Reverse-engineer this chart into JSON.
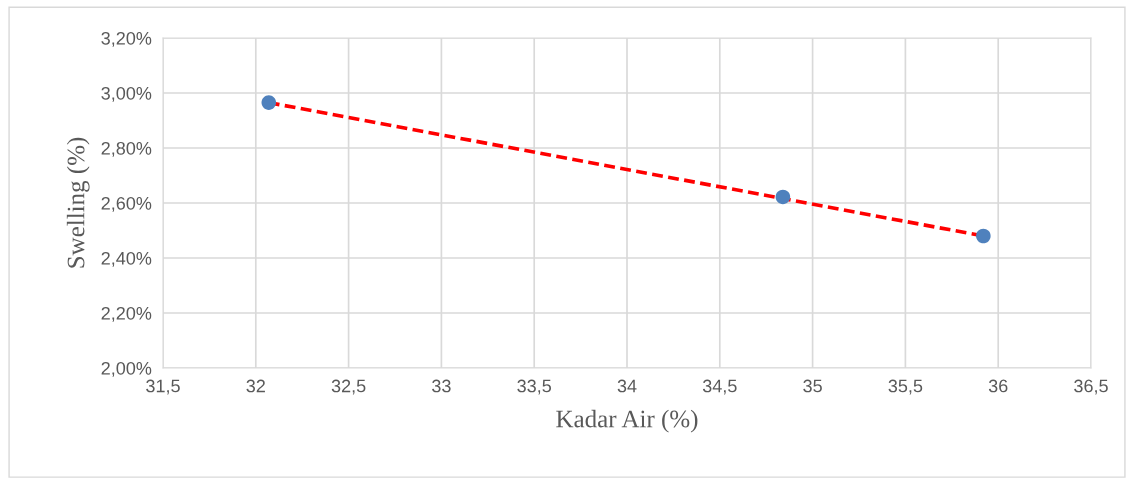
{
  "chart_data": {
    "type": "scatter",
    "xlabel": "Kadar Air (%)",
    "ylabel": "Swelling (%)",
    "series": [
      {
        "color": "#4f81bd",
        "x": [
          32.07,
          34.84,
          35.92
        ],
        "values": [
          2.965,
          2.622,
          2.48
        ],
        "marker": "circle"
      },
      {
        "type": "line",
        "color": "#ff0000",
        "x": [
          32.07,
          35.92
        ],
        "values": [
          2.965,
          2.48
        ],
        "line_style": "dashed",
        "marker": "none"
      }
    ],
    "xlim": [
      31.5,
      36.5
    ],
    "xticks": [
      {
        "value": 31.5,
        "label": "31,5"
      },
      32,
      {
        "value": 32.5,
        "label": "32,5"
      },
      33,
      {
        "value": 33.5,
        "label": "33,5"
      },
      34,
      {
        "value": 34.5,
        "label": "34,5"
      },
      35,
      {
        "value": 35.5,
        "label": "35,5"
      },
      36,
      {
        "value": 36.5,
        "label": "36,5"
      }
    ],
    "ylim": [
      2.0,
      3.2
    ],
    "yticks": [
      {
        "value": 2.0,
        "label": "2,00%"
      },
      {
        "value": 2.2,
        "label": "2,20%"
      },
      {
        "value": 2.4,
        "label": "2,40%"
      },
      {
        "value": 2.6,
        "label": "2,60%"
      },
      {
        "value": 2.8,
        "label": "2,80%"
      },
      {
        "value": 3.0,
        "label": "3,00%"
      },
      {
        "value": 3.2,
        "label": "3,20%"
      }
    ],
    "grid": true
  }
}
